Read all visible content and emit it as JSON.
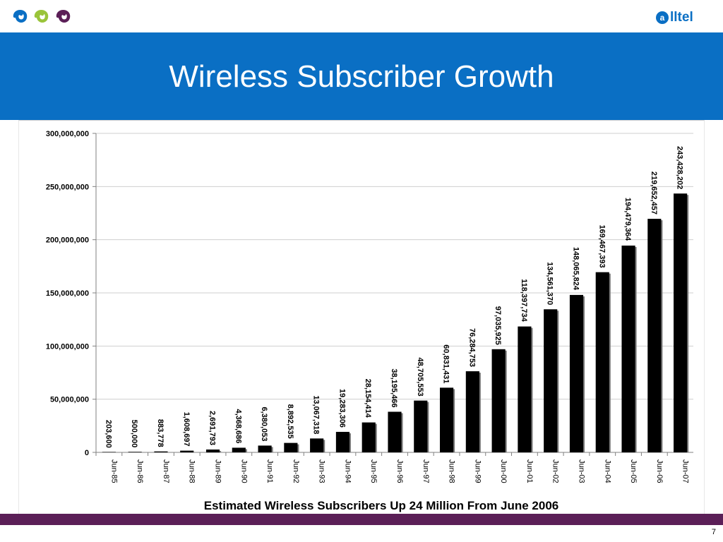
{
  "slide": {
    "title": "Wireless Subscriber Growth",
    "page_number": "7",
    "brand_logo_text": "alltel",
    "colors": {
      "title_band": "#0a6fc4",
      "footer_bar": "#5b1f57",
      "bars": "#000000",
      "gridlines": "#cfcfcf",
      "logo_blue": "#0a6fc4",
      "logo_green": "#9ac43a",
      "logo_purple": "#5b1f57"
    },
    "icons": [
      "brand-swirl-icon-blue",
      "brand-swirl-icon-green",
      "brand-swirl-icon-purple",
      "alltel-logo-icon"
    ]
  },
  "chart_data": {
    "type": "bar",
    "title": "",
    "xlabel": "Estimated Wireless Subscribers Up 24 Million From June 2006",
    "ylabel": "",
    "ylim": [
      0,
      300000000
    ],
    "y_ticks": [
      0,
      50000000,
      100000000,
      150000000,
      200000000,
      250000000,
      300000000
    ],
    "y_tick_labels": [
      "0",
      "50,000,000",
      "100,000,000",
      "150,000,000",
      "200,000,000",
      "250,000,000",
      "300,000,000"
    ],
    "categories": [
      "Jun-85",
      "Jun-86",
      "Jun-87",
      "Jun-88",
      "Jun-89",
      "Jun-90",
      "Jun-91",
      "Jun-92",
      "Jun-93",
      "Jun-94",
      "Jun-95",
      "Jun-96",
      "Jun-97",
      "Jun-98",
      "Jun-99",
      "Jun-00",
      "Jun-01",
      "Jun-02",
      "Jun-03",
      "Jun-04",
      "Jun-05",
      "Jun-06",
      "Jun-07"
    ],
    "values": [
      203600,
      500000,
      883778,
      1608697,
      2691793,
      4368686,
      6380053,
      8892535,
      13067318,
      19283306,
      28154414,
      38195466,
      48705553,
      60831431,
      76284753,
      97035925,
      118397734,
      134561370,
      148065824,
      169467393,
      194479364,
      219652457,
      243428202
    ],
    "data_labels": [
      "203,600",
      "500,000",
      "883,778",
      "1,608,697",
      "2,691,793",
      "4,368,686",
      "6,380,053",
      "8,892,535",
      "13,067,318",
      "19,283,306",
      "28,154,414",
      "38,195,466",
      "48,705,553",
      "60,831,431",
      "76,284,753",
      "97,035,925",
      "118,397,734",
      "134,561,370",
      "148,065,824",
      "169,467,393",
      "194,479,364",
      "219,652,457",
      "243,428,202"
    ],
    "grid": true,
    "legend": "none"
  }
}
